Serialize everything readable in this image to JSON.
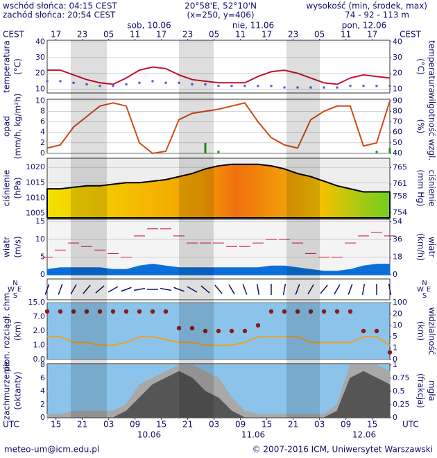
{
  "header": {
    "sunrise": "wschód słońca: 04:15 CEST",
    "sunset": "zachód słońca: 20:54 CEST",
    "coords": "20°58'E, 52°10'N",
    "grid": "(x=250,  y=406)",
    "height_title": "wysokość (min, środek, max)",
    "height": "74 - 92 - 113 m"
  },
  "footer": {
    "email": "meteo-um@icm.edu.pl",
    "copyright": "© 2007-2016 ICM, Uniwersytet Warszawski"
  },
  "time": {
    "xlim": [
      0,
      78
    ],
    "zone_top": "CEST",
    "zone_bottom": "UTC",
    "cest_ticks": [
      {
        "value": 2,
        "label": "17"
      },
      {
        "value": 8,
        "label": "23"
      },
      {
        "value": 14,
        "label": "05"
      },
      {
        "value": 20,
        "label": "11"
      },
      {
        "value": 26,
        "label": "17"
      },
      {
        "value": 32,
        "label": "23"
      },
      {
        "value": 38,
        "label": "05"
      },
      {
        "value": 44,
        "label": "11"
      },
      {
        "value": 50,
        "label": "17"
      },
      {
        "value": 56,
        "label": "23"
      },
      {
        "value": 62,
        "label": "05"
      },
      {
        "value": 68,
        "label": "11"
      },
      {
        "value": 74,
        "label": "17"
      }
    ],
    "utc_ticks": [
      {
        "value": 2,
        "label": "15"
      },
      {
        "value": 8,
        "label": "21"
      },
      {
        "value": 14,
        "label": "03"
      },
      {
        "value": 20,
        "label": "09"
      },
      {
        "value": 26,
        "label": "15"
      },
      {
        "value": 32,
        "label": "21"
      },
      {
        "value": 38,
        "label": "03"
      },
      {
        "value": 44,
        "label": "09"
      },
      {
        "value": 50,
        "label": "15"
      },
      {
        "value": 56,
        "label": "21"
      },
      {
        "value": 62,
        "label": "03"
      },
      {
        "value": 68,
        "label": "09"
      },
      {
        "value": 74,
        "label": "15"
      }
    ],
    "dates_top": [
      "sob, 10.06",
      "nie, 11.06",
      "pon, 12.06"
    ],
    "dates_bottom": [
      "10.06",
      "11.06",
      "12.06"
    ]
  },
  "chart_data": [
    {
      "type": "line",
      "ylabel": [
        "temperatura",
        "(°C)"
      ],
      "y2label": [
        "(°C)",
        "temperatura"
      ],
      "x": [
        0,
        3,
        6,
        9,
        12,
        15,
        18,
        21,
        24,
        27,
        30,
        33,
        36,
        39,
        42,
        45,
        48,
        51,
        54,
        57,
        60,
        63,
        66,
        69,
        72,
        75,
        78
      ],
      "ylim": [
        7.5,
        41
      ],
      "yticks": [
        10,
        20,
        30,
        40
      ],
      "y2lim": [
        7.5,
        41
      ],
      "y2ticks": [
        10,
        20,
        30,
        40
      ],
      "series": [
        {
          "type": "line",
          "color": "#c8102e",
          "values": [
            22,
            22,
            19,
            16,
            14,
            13,
            17,
            22,
            24,
            23,
            19,
            16,
            15,
            14,
            14,
            14,
            18,
            21,
            22,
            20,
            17,
            14,
            13,
            17,
            19,
            18,
            17
          ]
        },
        {
          "type": "scatter",
          "color": "#7060d8",
          "values": [
            15,
            15,
            14,
            13,
            12,
            12,
            13,
            14,
            15,
            14,
            14,
            13,
            13,
            12,
            12,
            12,
            12,
            12,
            11,
            11,
            11,
            11,
            11,
            12,
            12,
            12,
            12
          ]
        }
      ]
    },
    {
      "type": "line",
      "ylabel": [
        "opad",
        "(mm/h, kg/m²h)"
      ],
      "y2label": [
        "(%)",
        "wilgotność wzgl."
      ],
      "x": [
        0,
        3,
        6,
        9,
        12,
        15,
        18,
        21,
        24,
        27,
        30,
        33,
        36,
        39,
        42,
        45,
        48,
        51,
        54,
        57,
        60,
        63,
        66,
        69,
        72,
        75,
        78
      ],
      "ylim": [
        0,
        10.3
      ],
      "yticks": [
        0,
        2,
        4,
        6,
        8,
        10
      ],
      "y2lim": [
        40,
        91.5
      ],
      "y2ticks": [
        40,
        50,
        60,
        70,
        80,
        90
      ],
      "series": [
        {
          "type": "line",
          "axis": "y2",
          "color": "#d04a1a",
          "values": [
            45,
            48,
            65,
            75,
            85,
            88,
            85,
            50,
            40,
            42,
            72,
            78,
            80,
            82,
            85,
            88,
            70,
            55,
            48,
            45,
            72,
            80,
            85,
            85,
            47,
            50,
            90
          ]
        },
        {
          "type": "bar",
          "color": "#1a9a1a",
          "values": [
            0,
            0,
            0,
            0,
            0,
            0,
            0,
            0,
            0,
            0,
            0,
            0,
            2,
            0.5,
            0,
            0,
            0,
            0,
            0,
            0,
            0,
            0,
            0,
            0,
            0,
            0.5,
            1
          ]
        }
      ]
    },
    {
      "type": "area",
      "ylabel": [
        "ciśnienie",
        "(hPa)"
      ],
      "y2label": [
        "(mm Hg)",
        "ciśnienie"
      ],
      "x": [
        0,
        3,
        6,
        9,
        12,
        15,
        18,
        21,
        24,
        27,
        30,
        33,
        36,
        39,
        42,
        45,
        48,
        51,
        54,
        57,
        60,
        63,
        66,
        69,
        72,
        75,
        78
      ],
      "ylim": [
        1003.5,
        1023
      ],
      "yticks": [
        1005,
        1010,
        1015,
        1020
      ],
      "y2lim": [
        752.7,
        767.3
      ],
      "y2ticks": [
        754,
        758,
        761,
        765
      ],
      "series": [
        {
          "type": "area",
          "color": "#000000",
          "values": [
            1013,
            1013,
            1013.5,
            1014,
            1014,
            1014.5,
            1015,
            1015,
            1015.5,
            1016,
            1017,
            1018,
            1019.5,
            1020.5,
            1021,
            1021,
            1021,
            1020.5,
            1019.5,
            1018,
            1017,
            1015.5,
            1014,
            1013,
            1012,
            1012,
            1012
          ]
        }
      ]
    },
    {
      "type": "area",
      "ylabel": [
        "wiatr",
        "(m/s)"
      ],
      "y2label": [
        "(km/h)",
        "wiatr"
      ],
      "x": [
        0,
        3,
        6,
        9,
        12,
        15,
        18,
        21,
        24,
        27,
        30,
        33,
        36,
        39,
        42,
        45,
        48,
        51,
        54,
        57,
        60,
        63,
        66,
        69,
        72,
        75,
        78
      ],
      "ylim": [
        0,
        15.7
      ],
      "yticks": [
        0,
        5,
        10,
        15
      ],
      "y2lim": [
        0,
        56.5
      ],
      "y2ticks": [
        0,
        18,
        36,
        54
      ],
      "series": [
        {
          "type": "area",
          "color": "#0a6fd8",
          "values": [
            1.5,
            2,
            2,
            2,
            2,
            1.5,
            1.5,
            2.5,
            3,
            2.5,
            2,
            2,
            2,
            2,
            2,
            2,
            2,
            2.5,
            2.5,
            2,
            1.5,
            1,
            1,
            1.5,
            2.5,
            3,
            3
          ]
        },
        {
          "type": "dash",
          "color": "#c8102e",
          "values": [
            5,
            7,
            9,
            8,
            7,
            6,
            5,
            11,
            13,
            13,
            11,
            9,
            9,
            9,
            8,
            8,
            9,
            10,
            10,
            9,
            6,
            5,
            5,
            9,
            11,
            12,
            11
          ]
        }
      ]
    },
    {
      "type": "arrow",
      "compass": [
        "N",
        "W",
        "E",
        "S"
      ],
      "x": [
        0,
        3,
        6,
        9,
        12,
        15,
        18,
        21,
        24,
        27,
        30,
        33,
        36,
        39,
        42,
        45,
        48,
        51,
        54,
        57,
        60,
        63,
        66,
        69,
        72,
        75,
        78
      ],
      "series": [
        {
          "type": "arrow",
          "color": "#10106a",
          "values": [
            200,
            200,
            210,
            220,
            230,
            240,
            250,
            260,
            270,
            280,
            290,
            300,
            310,
            320,
            330,
            340,
            350,
            0,
            10,
            20,
            30,
            40,
            30,
            20,
            10,
            0,
            350
          ]
        }
      ]
    },
    {
      "type": "scatter",
      "yscale": "piecewise",
      "ylabel": [
        "pion. rozciągł. chm.",
        "(km)"
      ],
      "y2label": [
        "(km)",
        "widzialność"
      ],
      "x": [
        0,
        3,
        6,
        9,
        12,
        15,
        18,
        21,
        24,
        27,
        30,
        33,
        36,
        39,
        42,
        45,
        48,
        51,
        54,
        57,
        60,
        63,
        66,
        69,
        72,
        75,
        78
      ],
      "ylim": [
        0,
        15
      ],
      "yticks": [
        {
          "value": 0,
          "label": "0.0"
        },
        {
          "value": 1,
          "label": "1.0"
        },
        {
          "value": 2,
          "label": "2.0"
        },
        {
          "value": 7,
          "label": "7.0"
        },
        {
          "value": 15,
          "label": "15.0"
        }
      ],
      "y2lim": [
        0,
        100
      ],
      "y2ticks": [
        0,
        1,
        5,
        10,
        20,
        100
      ],
      "series": [
        {
          "type": "scatter",
          "color": "#8b1a1a",
          "values": [
            10,
            10,
            10,
            10,
            10,
            10,
            10,
            10,
            10,
            10,
            3,
            3,
            2,
            2,
            2,
            2,
            4,
            10,
            10,
            10,
            10,
            10,
            10,
            10,
            2,
            2,
            0.5
          ]
        },
        {
          "type": "line",
          "axis": "y2",
          "color": "#f0a020",
          "values": [
            5,
            5,
            3,
            3,
            2,
            2,
            3,
            5,
            5,
            4,
            3,
            3,
            2,
            2,
            2,
            3,
            5,
            5,
            5,
            5,
            3,
            3,
            3,
            3,
            5,
            5,
            2
          ]
        }
      ]
    },
    {
      "type": "area",
      "ylabel": [
        "zachmurzenie",
        "(oktanty)"
      ],
      "y2label": [
        "(frakcja)",
        "mgła"
      ],
      "x": [
        0,
        3,
        6,
        9,
        12,
        15,
        18,
        21,
        24,
        27,
        30,
        33,
        36,
        39,
        42,
        45,
        48,
        51,
        54,
        57,
        60,
        63,
        66,
        69,
        72,
        75,
        78
      ],
      "ylim": [
        0,
        8.2
      ],
      "yticks": [
        0,
        2,
        4,
        6,
        8
      ],
      "y2lim": [
        0,
        1.025
      ],
      "y2ticks": [
        0,
        0.25,
        0.5,
        0.75,
        1
      ],
      "series": [
        {
          "type": "area",
          "color": "#a8a8a8",
          "values": [
            0.5,
            0.5,
            1,
            1,
            1,
            1,
            2,
            5,
            6,
            7,
            8,
            8,
            7,
            6,
            3,
            1,
            0.5,
            0.5,
            0.5,
            0.5,
            0.5,
            0.5,
            2,
            8,
            8,
            8,
            7
          ]
        },
        {
          "type": "area",
          "color": "#555555",
          "values": [
            0,
            0,
            0,
            0,
            0,
            0,
            1,
            3,
            5,
            6,
            7,
            6,
            4,
            3,
            1,
            0,
            0,
            0,
            0,
            0,
            0,
            0,
            1,
            6,
            7,
            6,
            5
          ]
        }
      ]
    }
  ]
}
